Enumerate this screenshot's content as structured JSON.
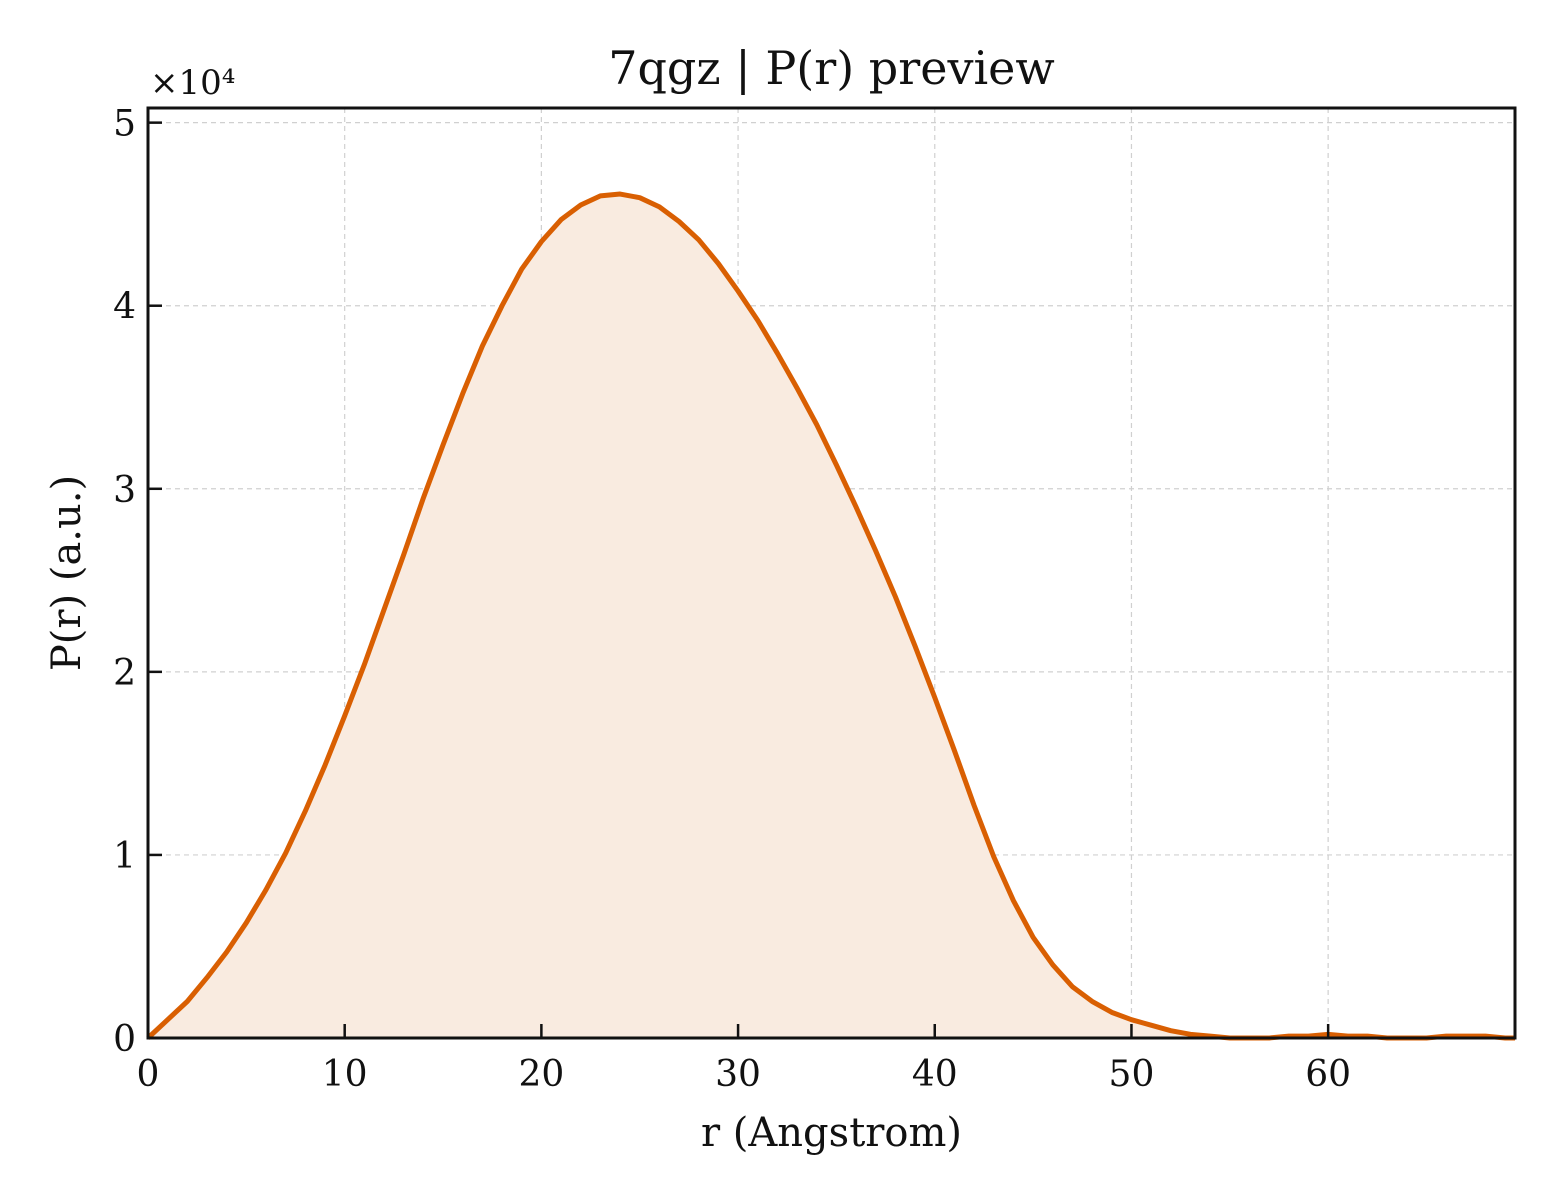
{
  "chart_data": {
    "type": "area",
    "title": "7qgz | P(r) preview",
    "xlabel": "r (Angstrom)",
    "ylabel": "P(r) (a.u.)",
    "y_scale_label": "×10⁴",
    "xlim": [
      0,
      69.5
    ],
    "ylim": [
      0,
      5.08
    ],
    "y_unit_multiplier": 10000,
    "xticks": [
      0,
      10,
      20,
      30,
      40,
      50,
      60
    ],
    "yticks": [
      0,
      1,
      2,
      3,
      4,
      5
    ],
    "grid": true,
    "legend": "none",
    "colors": {
      "line": "#d95f02",
      "fill": "#f9ebe0",
      "grid": "#d0d0d0",
      "axis": "#111111"
    },
    "series": [
      {
        "x": [
          0,
          1,
          2,
          3,
          4,
          5,
          6,
          7,
          8,
          9,
          10,
          11,
          12,
          13,
          14,
          15,
          16,
          17,
          18,
          19,
          20,
          21,
          22,
          23,
          24,
          25,
          26,
          27,
          28,
          29,
          30,
          31,
          32,
          33,
          34,
          35,
          36,
          37,
          38,
          39,
          40,
          41,
          42,
          43,
          44,
          45,
          46,
          47,
          48,
          49,
          50,
          51,
          52,
          53,
          54,
          55,
          56,
          57,
          58,
          59,
          60,
          61,
          62,
          63,
          64,
          65,
          66,
          67,
          68,
          69,
          69.5
        ],
        "y": [
          0.0,
          0.1,
          0.2,
          0.33,
          0.47,
          0.63,
          0.81,
          1.01,
          1.24,
          1.49,
          1.76,
          2.04,
          2.34,
          2.64,
          2.95,
          3.24,
          3.52,
          3.78,
          4.0,
          4.2,
          4.35,
          4.47,
          4.55,
          4.6,
          4.61,
          4.59,
          4.54,
          4.46,
          4.36,
          4.23,
          4.08,
          3.92,
          3.74,
          3.55,
          3.35,
          3.13,
          2.9,
          2.66,
          2.41,
          2.14,
          1.86,
          1.57,
          1.27,
          0.99,
          0.75,
          0.55,
          0.4,
          0.28,
          0.2,
          0.14,
          0.1,
          0.07,
          0.04,
          0.02,
          0.01,
          0.0,
          0.0,
          0.0,
          0.01,
          0.01,
          0.02,
          0.01,
          0.01,
          0.0,
          0.0,
          0.0,
          0.01,
          0.01,
          0.01,
          0.0,
          0.0
        ]
      }
    ]
  }
}
